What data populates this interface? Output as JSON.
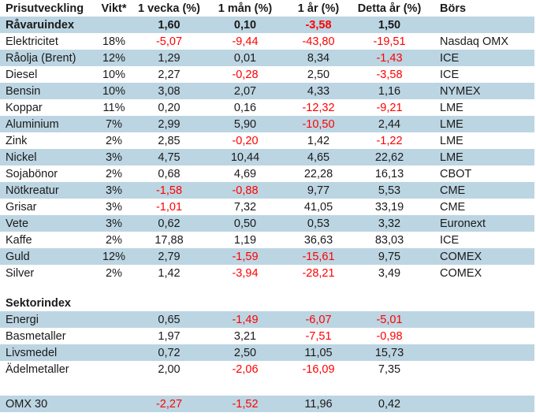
{
  "colors": {
    "highlight_row": "#bcd5e2",
    "negative_value": "#ff0000",
    "text": "#1a1a1a",
    "background": "#ffffff"
  },
  "table": {
    "headers": [
      "Prisutveckling",
      "Vikt*",
      "1 vecka (%)",
      "1 mån (%)",
      "1 år (%)",
      "Detta år (%)",
      "Börs"
    ],
    "main_rows": [
      {
        "cells": [
          "Råvaruindex",
          "",
          "1,60",
          "0,10",
          "-3,58",
          "1,50",
          ""
        ],
        "bold": true,
        "hl": true
      },
      {
        "cells": [
          "Elektricitet",
          "18%",
          "-5,07",
          "-9,44",
          "-43,80",
          "-19,51",
          "Nasdaq OMX"
        ],
        "hl": false
      },
      {
        "cells": [
          "Råolja (Brent)",
          "12%",
          "1,29",
          "0,01",
          "8,34",
          "-1,43",
          "ICE"
        ],
        "hl": true
      },
      {
        "cells": [
          "Diesel",
          "10%",
          "2,27",
          "-0,28",
          "2,50",
          "-3,58",
          "ICE"
        ],
        "hl": false
      },
      {
        "cells": [
          "Bensin",
          "10%",
          "3,08",
          "2,07",
          "4,33",
          "1,16",
          "NYMEX"
        ],
        "hl": true
      },
      {
        "cells": [
          "Koppar",
          "11%",
          "0,20",
          "0,16",
          "-12,32",
          "-9,21",
          "LME"
        ],
        "hl": false
      },
      {
        "cells": [
          "Aluminium",
          "7%",
          "2,99",
          "5,90",
          "-10,50",
          "2,44",
          "LME"
        ],
        "hl": true
      },
      {
        "cells": [
          "Zink",
          "2%",
          "2,85",
          "-0,20",
          "1,42",
          "-1,22",
          "LME"
        ],
        "hl": false
      },
      {
        "cells": [
          "Nickel",
          "3%",
          "4,75",
          "10,44",
          "4,65",
          "22,62",
          "LME"
        ],
        "hl": true
      },
      {
        "cells": [
          "Sojabönor",
          "2%",
          "0,68",
          "4,69",
          "22,28",
          "16,13",
          "CBOT"
        ],
        "hl": false
      },
      {
        "cells": [
          "Nötkreatur",
          "3%",
          "-1,58",
          "-0,88",
          "9,77",
          "5,53",
          "CME"
        ],
        "hl": true
      },
      {
        "cells": [
          "Grisar",
          "3%",
          "-1,01",
          "7,32",
          "41,05",
          "33,19",
          "CME"
        ],
        "hl": false
      },
      {
        "cells": [
          "Vete",
          "3%",
          "0,62",
          "0,50",
          "0,53",
          "3,32",
          "Euronext"
        ],
        "hl": true
      },
      {
        "cells": [
          "Kaffe",
          "2%",
          "17,88",
          "1,19",
          "36,63",
          "83,03",
          "ICE"
        ],
        "hl": false
      },
      {
        "cells": [
          "Guld",
          "12%",
          "2,79",
          "-1,59",
          "-15,61",
          "9,75",
          "COMEX"
        ],
        "hl": true
      },
      {
        "cells": [
          "Silver",
          "2%",
          "1,42",
          "-3,94",
          "-28,21",
          "3,49",
          "COMEX"
        ],
        "hl": false
      }
    ],
    "sector_rows": [
      {
        "cells": [
          "Sektorindex",
          "",
          "",
          "",
          "",
          "",
          ""
        ],
        "bold": true,
        "hl": false
      },
      {
        "cells": [
          "Energi",
          "",
          "0,65",
          "-1,49",
          "-6,07",
          "-5,01",
          ""
        ],
        "hl": true
      },
      {
        "cells": [
          "Basmetaller",
          "",
          "1,97",
          "3,21",
          "-7,51",
          "-0,98",
          ""
        ],
        "hl": false
      },
      {
        "cells": [
          "Livsmedel",
          "",
          "0,72",
          "2,50",
          "11,05",
          "15,73",
          ""
        ],
        "hl": true
      },
      {
        "cells": [
          "Ädelmetaller",
          "",
          "2,00",
          "-2,06",
          "-16,09",
          "7,35",
          ""
        ],
        "hl": false
      }
    ],
    "omx_rows": [
      {
        "cells": [
          "OMX 30",
          "",
          "-2,27",
          "-1,52",
          "11,96",
          "0,42",
          ""
        ],
        "hl": true
      }
    ]
  }
}
